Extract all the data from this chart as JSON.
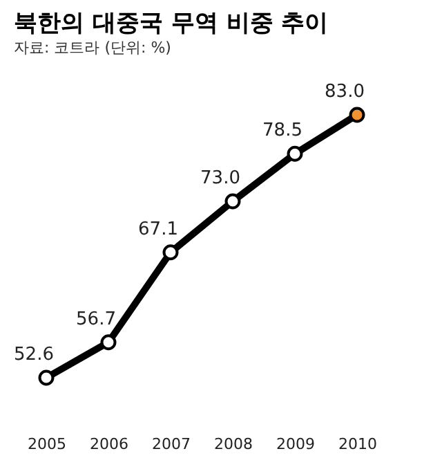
{
  "chart_data": {
    "type": "line",
    "title": "북한의 대중국 무역 비중 추이",
    "subtitle": "자료: 코트라 (단위: %)",
    "categories": [
      "2005",
      "2006",
      "2007",
      "2008",
      "2009",
      "2010"
    ],
    "series": [
      {
        "color": "#000000",
        "values": [
          52.6,
          56.7,
          67.1,
          73.0,
          78.5,
          83.0
        ],
        "colors": [
          "#ffffff",
          "#ffffff",
          "#ffffff",
          "#ffffff",
          "#ffffff",
          "#f39230"
        ],
        "value_labels": [
          "52.6",
          "56.7",
          "67.1",
          "73.0",
          "78.5",
          "83.0"
        ]
      }
    ],
    "marker": "circle",
    "line_style": "solid",
    "grid": false,
    "tick_labels": "x"
  }
}
